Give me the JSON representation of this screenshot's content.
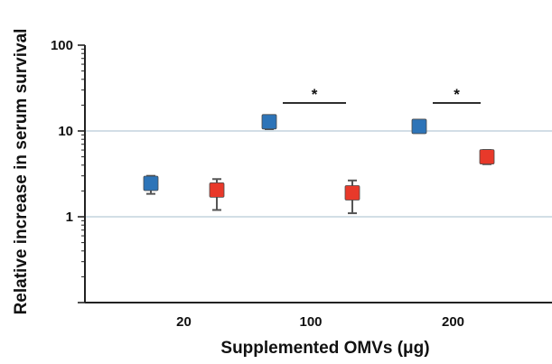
{
  "chart_data": {
    "type": "scatter",
    "title": "",
    "xlabel": "Supplemented OMVs (μg)",
    "ylabel": "Relative increase in serum survival",
    "y_scale": "log",
    "ylim": [
      0.1,
      100
    ],
    "yticks": [
      {
        "value": 1,
        "label": "1"
      },
      {
        "value": 10,
        "label": "10"
      },
      {
        "value": 100,
        "label": "100"
      }
    ],
    "gridlines": [
      1,
      10
    ],
    "grid_color": "#b8cbd6",
    "categories": [
      "20",
      "100",
      "200"
    ],
    "series": [
      {
        "color": "#2d74b8",
        "values": [
          2.45,
          12.8,
          11.3
        ],
        "error_low": [
          1.85,
          10.5,
          10.6
        ],
        "error_high": [
          3.0,
          13.6,
          12.0
        ]
      },
      {
        "color": "#e8392a",
        "values": [
          2.05,
          1.9,
          5.0
        ],
        "error_low": [
          1.2,
          1.1,
          4.1
        ],
        "error_high": [
          2.75,
          2.65,
          6.0
        ]
      }
    ],
    "significance": [
      {
        "category": "100",
        "label": "*"
      },
      {
        "category": "200",
        "label": "*"
      }
    ]
  }
}
